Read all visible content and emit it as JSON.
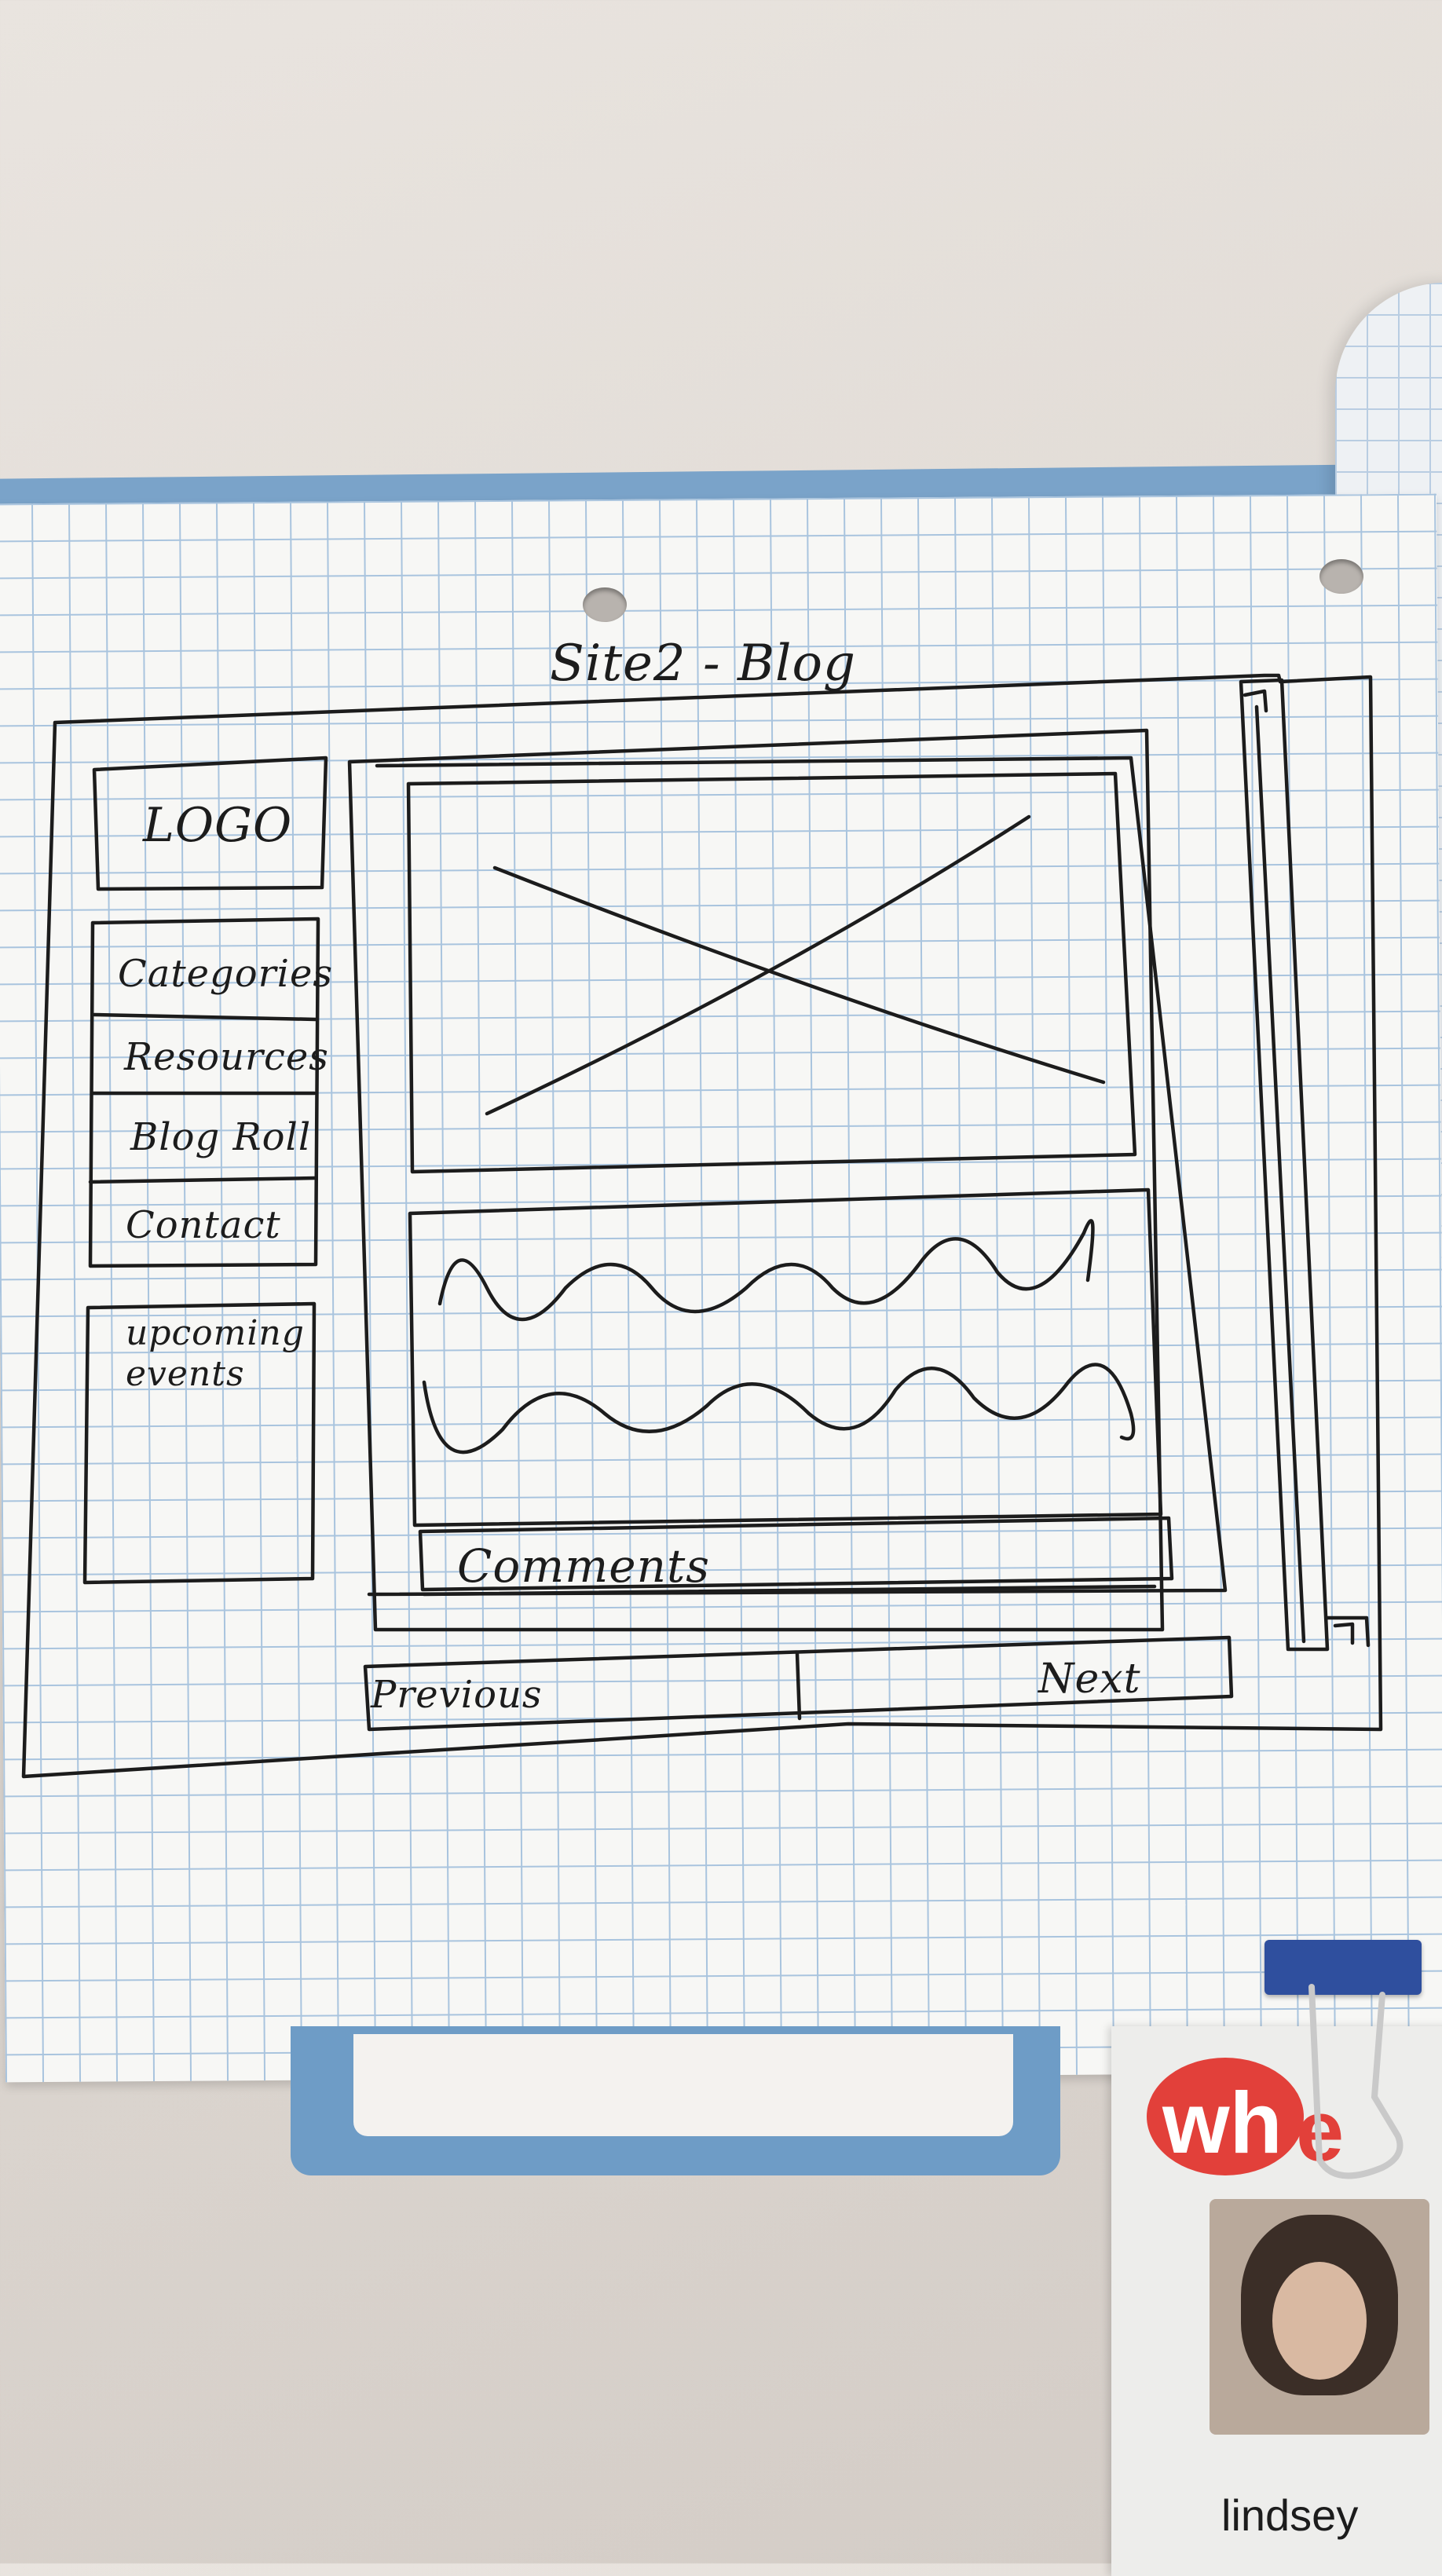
{
  "sketch": {
    "title": "Site2 - Blog",
    "logo": "LOGO",
    "nav": [
      {
        "label": "Categories"
      },
      {
        "label": "Resources"
      },
      {
        "label": "Blog Roll"
      },
      {
        "label": "Contact"
      }
    ],
    "events_label": "upcoming events",
    "comments_label": "Comments",
    "prev_label": "Previous",
    "next_label": "Next"
  },
  "badge": {
    "logo_text_1": "wh",
    "logo_text_2": "e",
    "name": "lindsey"
  },
  "colors": {
    "ink": "#1c1c1c",
    "grid": "#a9c4de",
    "binder": "#6e9cc6",
    "badge_red": "#e2403a",
    "clip_blue": "#2f4f9e"
  }
}
